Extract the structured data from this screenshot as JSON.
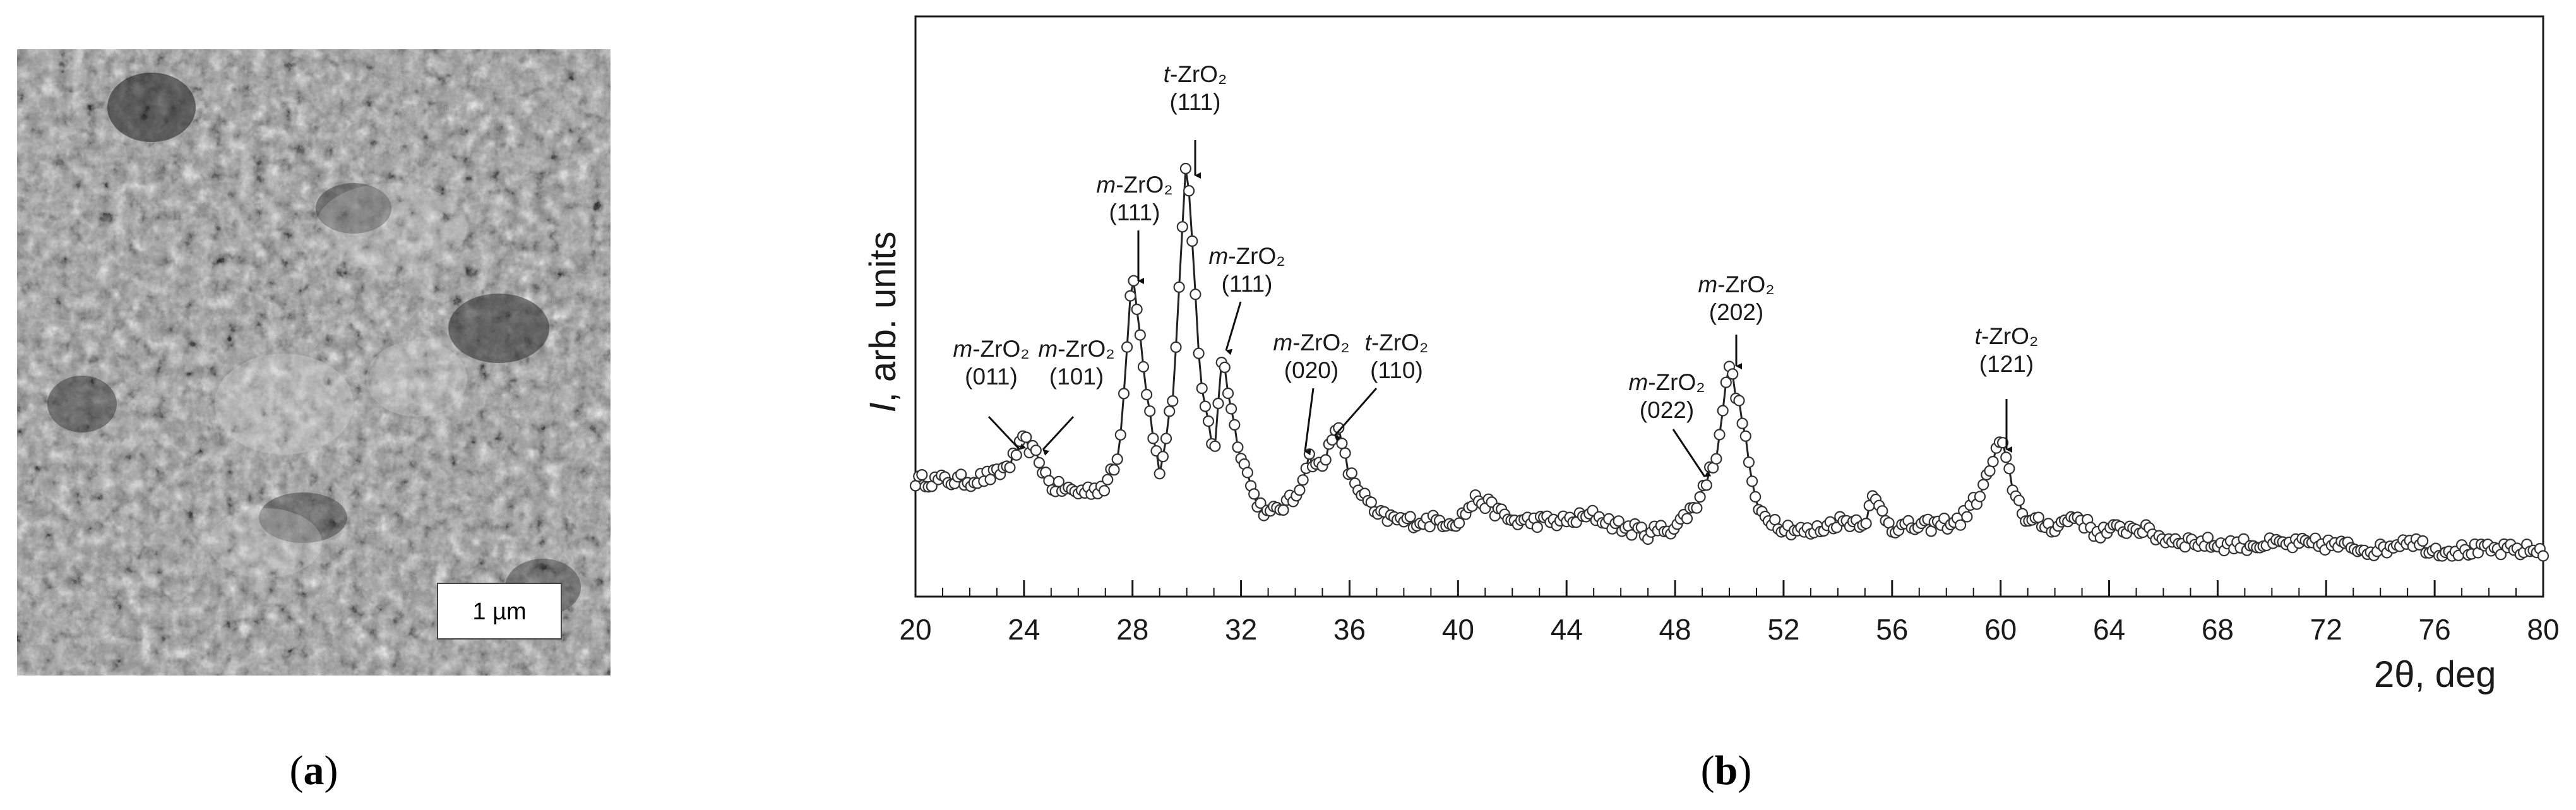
{
  "panel_a": {
    "label": "a",
    "scale_bar": "1 µm"
  },
  "panel_b": {
    "label": "b"
  },
  "chart_data": {
    "type": "scatter",
    "style": "line with open circle markers",
    "xlabel": "2θ, deg",
    "ylabel_italic": "I",
    "ylabel_rest": ", arb. units",
    "xlim": [
      20,
      80
    ],
    "ylim": [
      0,
      100
    ],
    "y_ticks_shown": false,
    "grid": false,
    "x_ticks": [
      20,
      24,
      28,
      32,
      36,
      40,
      44,
      48,
      52,
      56,
      60,
      64,
      68,
      72,
      76,
      80
    ],
    "x_tick_labels": [
      "20",
      "24",
      "28",
      "32",
      "36",
      "40",
      "44",
      "48",
      "52",
      "56",
      "60",
      "64",
      "68",
      "72",
      "76",
      "80"
    ],
    "x_minor_step": 1,
    "colors": {
      "line": "#222222",
      "marker_fill": "#ffffff",
      "marker_edge": "#333333"
    },
    "series": [
      {
        "x": [
          20,
          21,
          22,
          23,
          23.5,
          24,
          24.5,
          25,
          26,
          27,
          27.5,
          28,
          28.5,
          29,
          29.5,
          30,
          30.5,
          31,
          31.3,
          31.8,
          32.5,
          33,
          34,
          34.5,
          35,
          35.5,
          36,
          37,
          38,
          40,
          40.7,
          42,
          44,
          45,
          46,
          47,
          48,
          48.8,
          49.5,
          50,
          50.5,
          51,
          52,
          53,
          54,
          55,
          55.3,
          56,
          57,
          58.5,
          59.3,
          60,
          60.5,
          61,
          62,
          62.8,
          63.5,
          65,
          66,
          68,
          70,
          72,
          74,
          75,
          76,
          78,
          80
        ],
        "y": [
          20,
          20,
          20,
          21,
          23,
          27,
          24,
          19,
          18,
          19,
          24,
          57,
          36,
          21,
          35,
          76,
          38,
          24,
          42,
          28,
          17,
          14,
          17,
          24,
          22,
          30,
          21,
          14,
          13,
          13,
          17,
          13,
          13,
          14,
          12,
          11,
          12,
          16,
          24,
          40,
          30,
          15,
          12,
          11,
          13,
          13,
          17,
          12,
          12,
          13,
          18,
          27,
          18,
          13,
          12,
          14,
          11,
          12,
          10,
          9,
          9,
          9,
          8,
          10,
          8,
          8,
          8
        ]
      }
    ],
    "annotations": [
      {
        "phase": "m",
        "formula": "ZrO₂",
        "hkl": "(011)",
        "x": 23.9,
        "y": 24
      },
      {
        "phase": "m",
        "formula": "ZrO₂",
        "hkl": "(101)",
        "x": 24.6,
        "y": 24
      },
      {
        "phase": "m",
        "formula": "ZrO₂",
        "hkl": "(111)",
        "x": 28.0,
        "y": 58
      },
      {
        "phase": "t",
        "formula": "ZrO₂",
        "hkl": "(111)",
        "x": 30.0,
        "y": 77
      },
      {
        "phase": "m",
        "formula": "ZrO₂",
        "hkl": "(111)",
        "x": 31.2,
        "y": 44
      },
      {
        "phase": "m",
        "formula": "ZrO₂",
        "hkl": "(020)",
        "x": 34.0,
        "y": 26
      },
      {
        "phase": "t",
        "formula": "ZrO₂",
        "hkl": "(110)",
        "x": 35.0,
        "y": 30
      },
      {
        "phase": "m",
        "formula": "ZrO₂",
        "hkl": "(022)",
        "x": 49.0,
        "y": 20
      },
      {
        "phase": "m",
        "formula": "ZrO₂",
        "hkl": "(202)",
        "x": 50.0,
        "y": 42
      },
      {
        "phase": "t",
        "formula": "ZrO₂",
        "hkl": "(121)",
        "x": 59.9,
        "y": 26
      }
    ]
  }
}
